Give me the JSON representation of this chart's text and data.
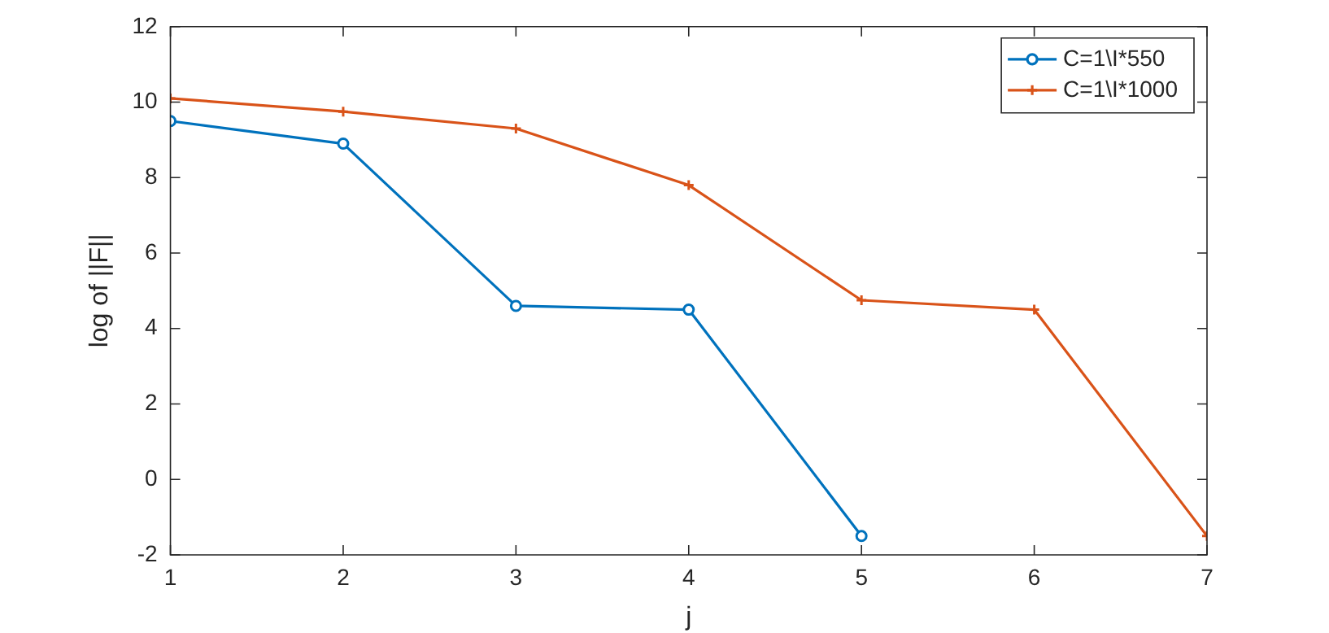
{
  "chart_data": {
    "type": "line",
    "xlabel": "j",
    "ylabel": "log of ||F||",
    "x": [
      1,
      2,
      3,
      4,
      5,
      6,
      7
    ],
    "xlim": [
      1,
      7
    ],
    "xticks": [
      1,
      2,
      3,
      4,
      5,
      6,
      7
    ],
    "ylim": [
      -2,
      12
    ],
    "yticks": [
      -2,
      0,
      2,
      4,
      6,
      8,
      10,
      12
    ],
    "grid": false,
    "legend": "top right",
    "line_style": "solid",
    "series": [
      {
        "name": "C=1\\I*550",
        "color": "#0072bd",
        "marker": "circle",
        "x": [
          1,
          2,
          3,
          4,
          5
        ],
        "values": [
          9.5,
          8.9,
          4.6,
          4.5,
          -1.5
        ]
      },
      {
        "name": "C=1\\I*1000",
        "color": "#d95319",
        "marker": "cross",
        "values": [
          10.1,
          9.75,
          9.3,
          7.8,
          4.75,
          4.5,
          -1.5
        ]
      }
    ]
  }
}
